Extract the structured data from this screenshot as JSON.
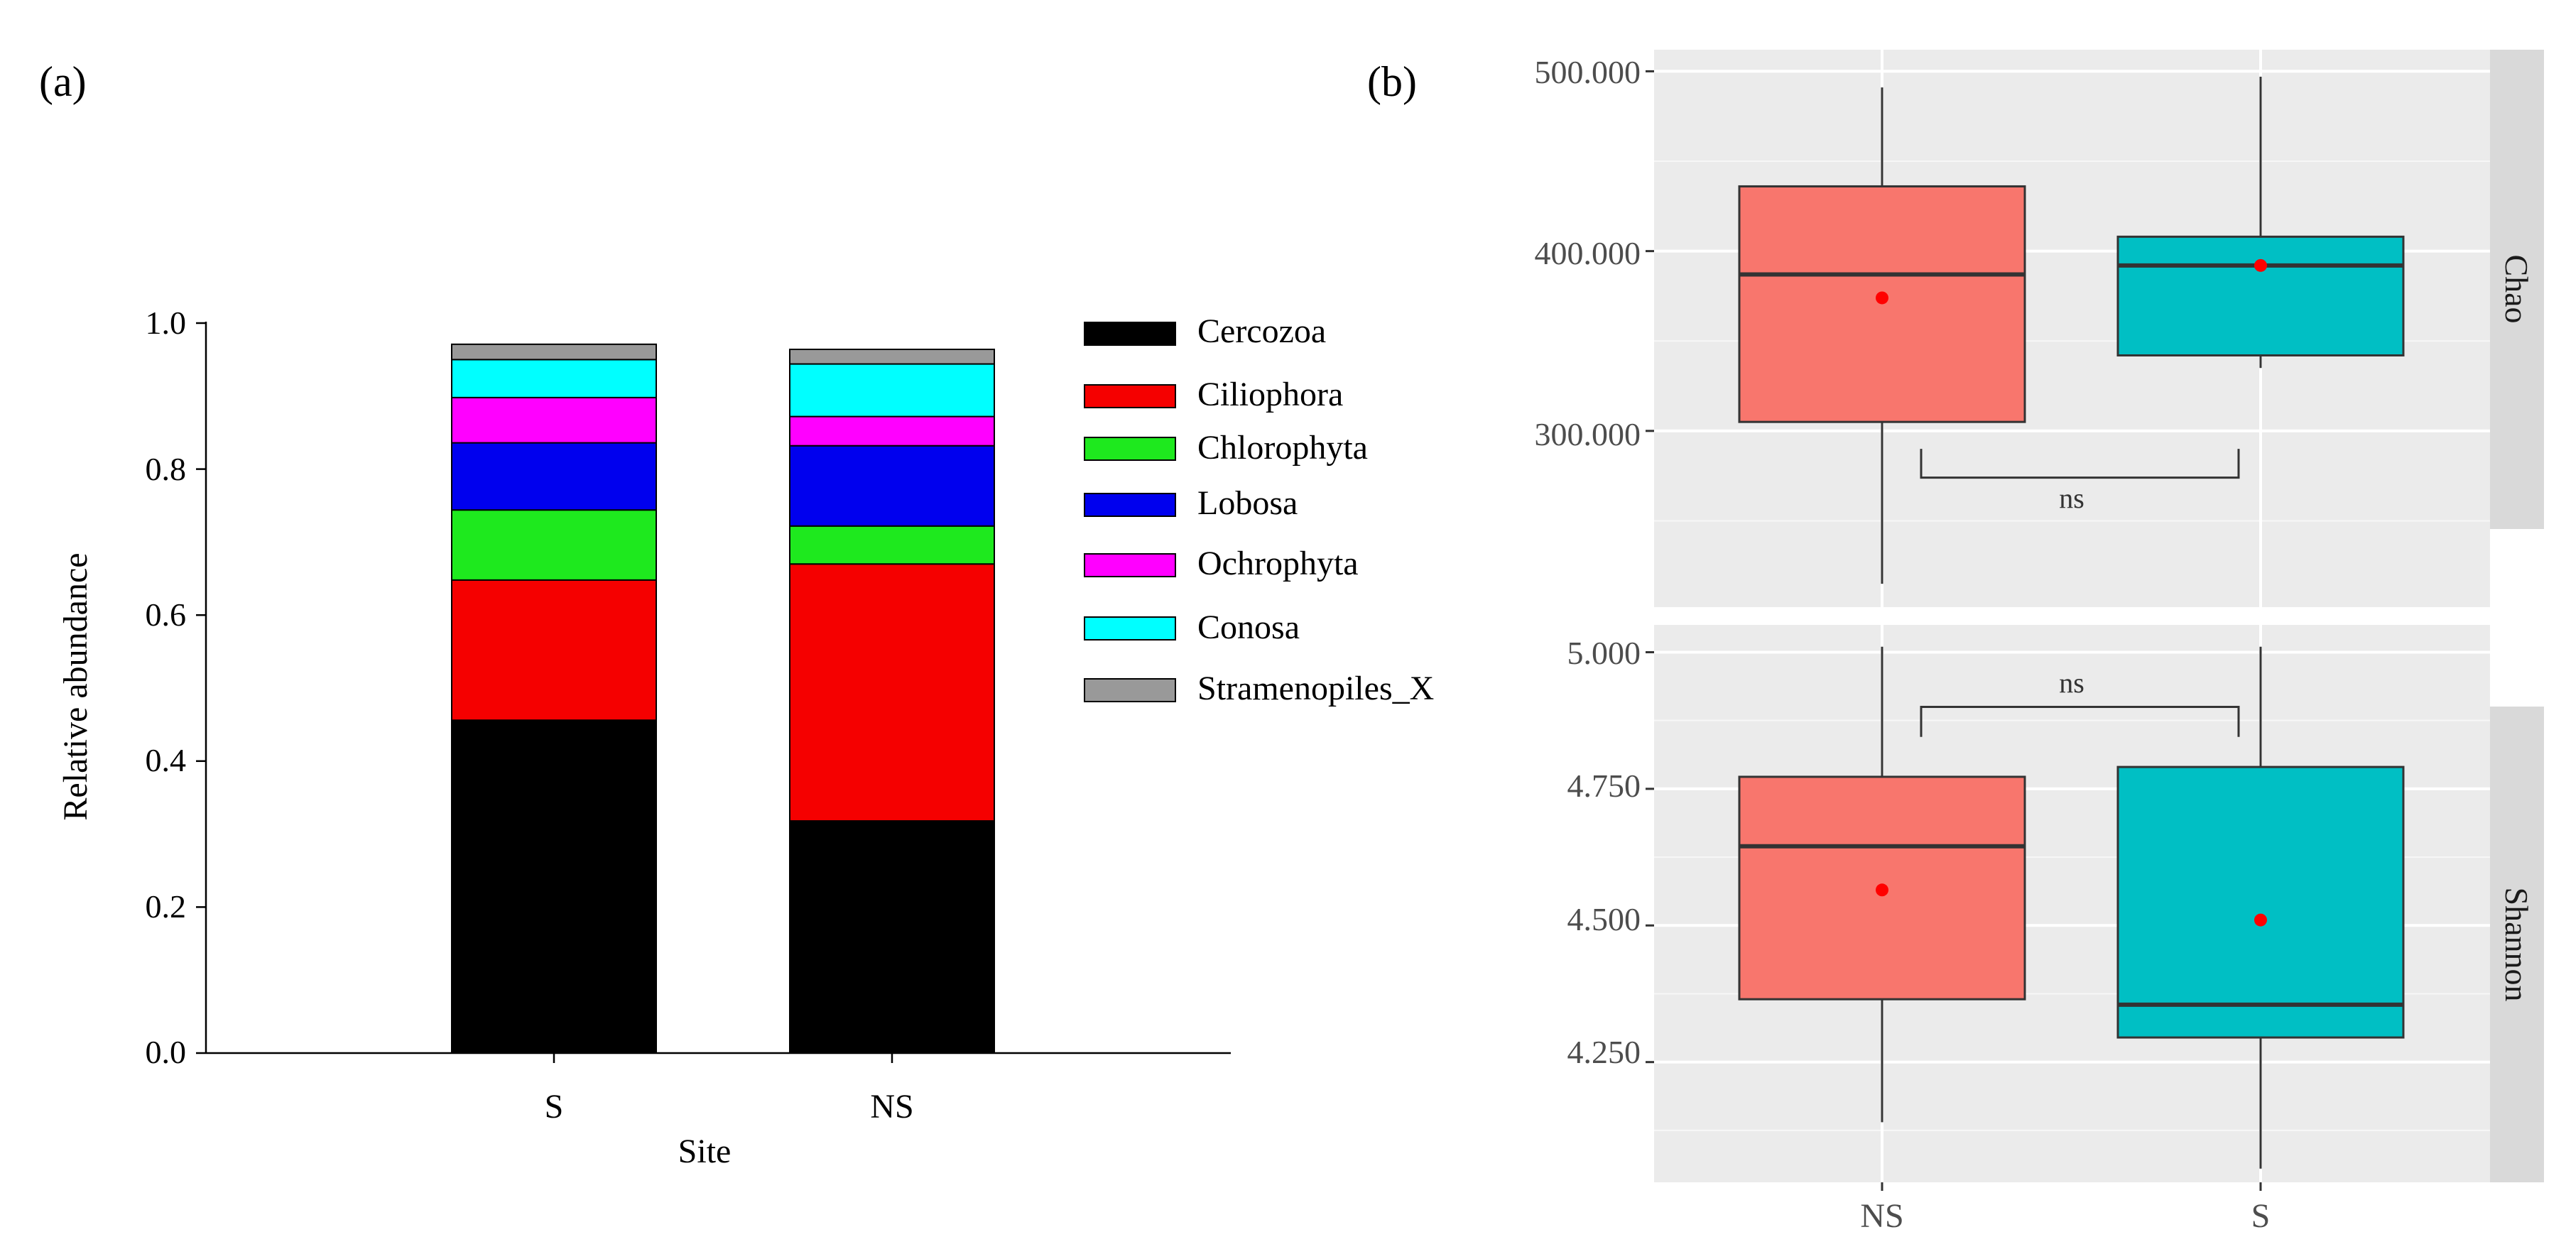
{
  "chart_data": [
    {
      "panel_label": "(a)",
      "type": "bar",
      "stacked": true,
      "xlabel": "Site",
      "ylabel": "Relative abundance",
      "ylim": [
        0,
        1.0
      ],
      "yticks": [
        "0.0",
        "0.2",
        "0.4",
        "0.6",
        "0.8",
        "1.0"
      ],
      "categories": [
        "S",
        "NS"
      ],
      "legend_position": "right",
      "series": [
        {
          "name": "Cercozoa",
          "color": "#000000",
          "values": [
            0.456,
            0.318
          ]
        },
        {
          "name": "Ciliophora",
          "color": "#f50000",
          "values": [
            0.192,
            0.352
          ]
        },
        {
          "name": "Chlorophyta",
          "color": "#1ee91e",
          "values": [
            0.096,
            0.052
          ]
        },
        {
          "name": "Lobosa",
          "color": "#0000ee",
          "values": [
            0.092,
            0.11
          ]
        },
        {
          "name": "Ochrophyta",
          "color": "#ff00ff",
          "values": [
            0.062,
            0.04
          ]
        },
        {
          "name": "Conosa",
          "color": "#00ffff",
          "values": [
            0.052,
            0.072
          ]
        },
        {
          "name": "Stramenopiles_X",
          "color": "#999999",
          "values": [
            0.021,
            0.02
          ]
        }
      ]
    },
    {
      "panel_label": "(b)",
      "type": "boxplot",
      "categories": [
        "NS",
        "S"
      ],
      "group_colors": {
        "NS": "#f8766d",
        "S": "#00bfc4"
      },
      "mean_color": "#ff0000",
      "facets": [
        {
          "name": "Chao",
          "ylim": [
            202,
            512
          ],
          "yticks": [
            300,
            400,
            500
          ],
          "ytick_labels": [
            "300.000",
            "400.000",
            "500.000"
          ],
          "boxes": [
            {
              "group": "NS",
              "min": 215,
              "q1": 305,
              "median": 387,
              "q3": 436,
              "max": 491,
              "mean": 374
            },
            {
              "group": "S",
              "min": 335,
              "q1": 342,
              "median": 392,
              "q3": 408,
              "max": 497,
              "mean": 392
            }
          ],
          "comparison": {
            "label": "ns",
            "direction": "up",
            "y_bracket": 274,
            "y_tip": 290
          }
        },
        {
          "name": "Shannon",
          "ylim": [
            4.03,
            5.05
          ],
          "yticks": [
            4.25,
            4.5,
            4.75,
            5.0
          ],
          "ytick_labels": [
            "4.250",
            "4.500",
            "4.750",
            "5.000"
          ],
          "boxes": [
            {
              "group": "NS",
              "min": 4.14,
              "q1": 4.365,
              "median": 4.645,
              "q3": 4.772,
              "max": 5.01,
              "mean": 4.565
            },
            {
              "group": "S",
              "min": 4.055,
              "q1": 4.295,
              "median": 4.355,
              "q3": 4.79,
              "max": 5.01,
              "mean": 4.51
            }
          ],
          "comparison": {
            "label": "ns",
            "direction": "down",
            "y_bracket": 4.9,
            "y_tip": 4.845
          }
        }
      ]
    }
  ]
}
